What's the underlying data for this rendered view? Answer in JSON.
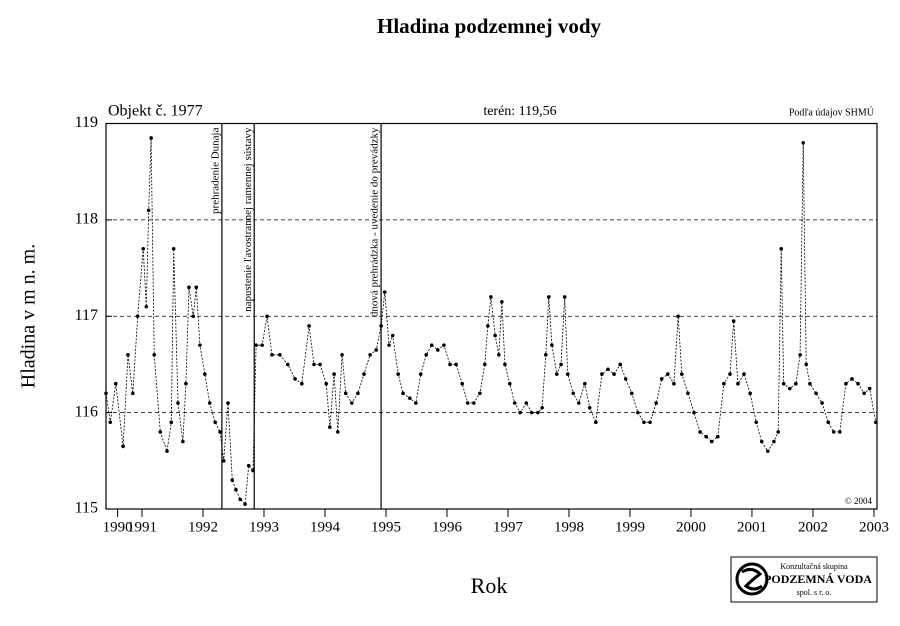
{
  "chart_data": {
    "type": "line",
    "title": "Hladina podzemnej vody",
    "ylabel": "Hladina v m n. m.",
    "xlabel": "Rok",
    "header_left": "Objekt č. 1977",
    "header_center": "terén: 119,56",
    "header_right": "Podľa údajov SHMÚ",
    "copyright": "© 2004",
    "logo": {
      "line1": "Konzultačná skupina",
      "line2": "PODZEMNÁ VODA",
      "line3": "spol. s r. o."
    },
    "color": "#000000",
    "grid": true,
    "xlim": [
      1990.41,
      2003.05
    ],
    "ylim": [
      115,
      119
    ],
    "yticks": [
      115,
      116,
      117,
      118,
      119
    ],
    "xticks": [
      {
        "value": 1990.6,
        "label": "1990"
      },
      1991,
      1992,
      1993,
      1994,
      1995,
      1996,
      1997,
      1998,
      1999,
      2000,
      2001,
      2002,
      2003
    ],
    "annotations": [
      {
        "text": "prehradenie Dunaja",
        "x": 1992.31
      },
      {
        "text": "napustenie ľavostrannej ramennej sústavy",
        "x": 1992.84
      },
      {
        "text": "dnová prehrádzka - uvedenie do prevádzky",
        "x": 1994.92
      }
    ],
    "x": [
      1990.41,
      1990.48,
      1990.57,
      1990.69,
      1990.77,
      1990.85,
      1990.93,
      1991.02,
      1991.07,
      1991.11,
      1991.15,
      1991.2,
      1991.3,
      1991.41,
      1991.48,
      1991.52,
      1991.59,
      1991.67,
      1991.72,
      1991.77,
      1991.84,
      1991.89,
      1991.95,
      1992.03,
      1992.11,
      1992.2,
      1992.28,
      1992.34,
      1992.41,
      1992.48,
      1992.54,
      1992.61,
      1992.69,
      1992.75,
      1992.82,
      1992.87,
      1992.97,
      1993.05,
      1993.13,
      1993.26,
      1993.39,
      1993.51,
      1993.62,
      1993.74,
      1993.82,
      1993.92,
      1994.02,
      1994.08,
      1994.15,
      1994.21,
      1994.28,
      1994.34,
      1994.44,
      1994.54,
      1994.64,
      1994.74,
      1994.84,
      1994.92,
      1994.98,
      1995.05,
      1995.11,
      1995.2,
      1995.28,
      1995.39,
      1995.49,
      1995.57,
      1995.66,
      1995.75,
      1995.85,
      1995.95,
      1996.05,
      1996.15,
      1996.25,
      1996.34,
      1996.44,
      1996.54,
      1996.62,
      1996.67,
      1996.72,
      1996.79,
      1996.85,
      1996.9,
      1996.95,
      1997.03,
      1997.11,
      1997.2,
      1997.3,
      1997.39,
      1997.49,
      1997.56,
      1997.62,
      1997.67,
      1997.72,
      1997.8,
      1997.87,
      1997.93,
      1997.98,
      1998.07,
      1998.16,
      1998.26,
      1998.34,
      1998.44,
      1998.54,
      1998.64,
      1998.74,
      1998.84,
      1998.93,
      1999.03,
      1999.13,
      1999.23,
      1999.33,
      1999.43,
      1999.52,
      1999.62,
      1999.72,
      1999.79,
      1999.85,
      1999.95,
      2000.05,
      2000.15,
      2000.25,
      2000.34,
      2000.44,
      2000.54,
      2000.64,
      2000.7,
      2000.77,
      2000.87,
      2000.97,
      2001.07,
      2001.16,
      2001.26,
      2001.36,
      2001.43,
      2001.48,
      2001.52,
      2001.62,
      2001.72,
      2001.79,
      2001.84,
      2001.89,
      2001.95,
      2002.05,
      2002.15,
      2002.25,
      2002.34,
      2002.44,
      2002.54,
      2002.64,
      2002.74,
      2002.84,
      2002.93,
      2003.03
    ],
    "values": [
      116.2,
      115.9,
      116.3,
      115.65,
      116.6,
      116.2,
      117.0,
      117.7,
      117.1,
      118.1,
      118.85,
      116.6,
      115.8,
      115.6,
      115.9,
      117.7,
      116.1,
      115.7,
      116.3,
      117.3,
      117.0,
      117.3,
      116.7,
      116.4,
      116.1,
      115.9,
      115.8,
      115.5,
      116.1,
      115.3,
      115.2,
      115.1,
      115.05,
      115.45,
      115.4,
      116.7,
      116.7,
      117.0,
      116.6,
      116.6,
      116.5,
      116.35,
      116.3,
      116.9,
      116.5,
      116.5,
      116.3,
      115.85,
      116.4,
      115.8,
      116.6,
      116.2,
      116.1,
      116.2,
      116.4,
      116.6,
      116.65,
      116.9,
      117.25,
      116.7,
      116.8,
      116.4,
      116.2,
      116.15,
      116.1,
      116.4,
      116.6,
      116.7,
      116.65,
      116.7,
      116.5,
      116.5,
      116.3,
      116.1,
      116.1,
      116.2,
      116.5,
      116.9,
      117.2,
      116.8,
      116.6,
      117.15,
      116.5,
      116.3,
      116.1,
      116.0,
      116.1,
      116.0,
      116.0,
      116.05,
      116.6,
      117.2,
      116.7,
      116.4,
      116.5,
      117.2,
      116.4,
      116.2,
      116.1,
      116.3,
      116.05,
      115.9,
      116.4,
      116.45,
      116.4,
      116.5,
      116.35,
      116.2,
      116.0,
      115.9,
      115.9,
      116.1,
      116.35,
      116.4,
      116.3,
      117.0,
      116.4,
      116.2,
      116.0,
      115.8,
      115.75,
      115.7,
      115.75,
      116.3,
      116.4,
      116.95,
      116.3,
      116.4,
      116.2,
      115.9,
      115.7,
      115.6,
      115.7,
      115.8,
      117.7,
      116.3,
      116.25,
      116.3,
      116.6,
      118.8,
      116.5,
      116.3,
      116.2,
      116.1,
      115.9,
      115.8,
      115.8,
      116.3,
      116.35,
      116.3,
      116.2,
      116.25,
      115.9
    ]
  }
}
